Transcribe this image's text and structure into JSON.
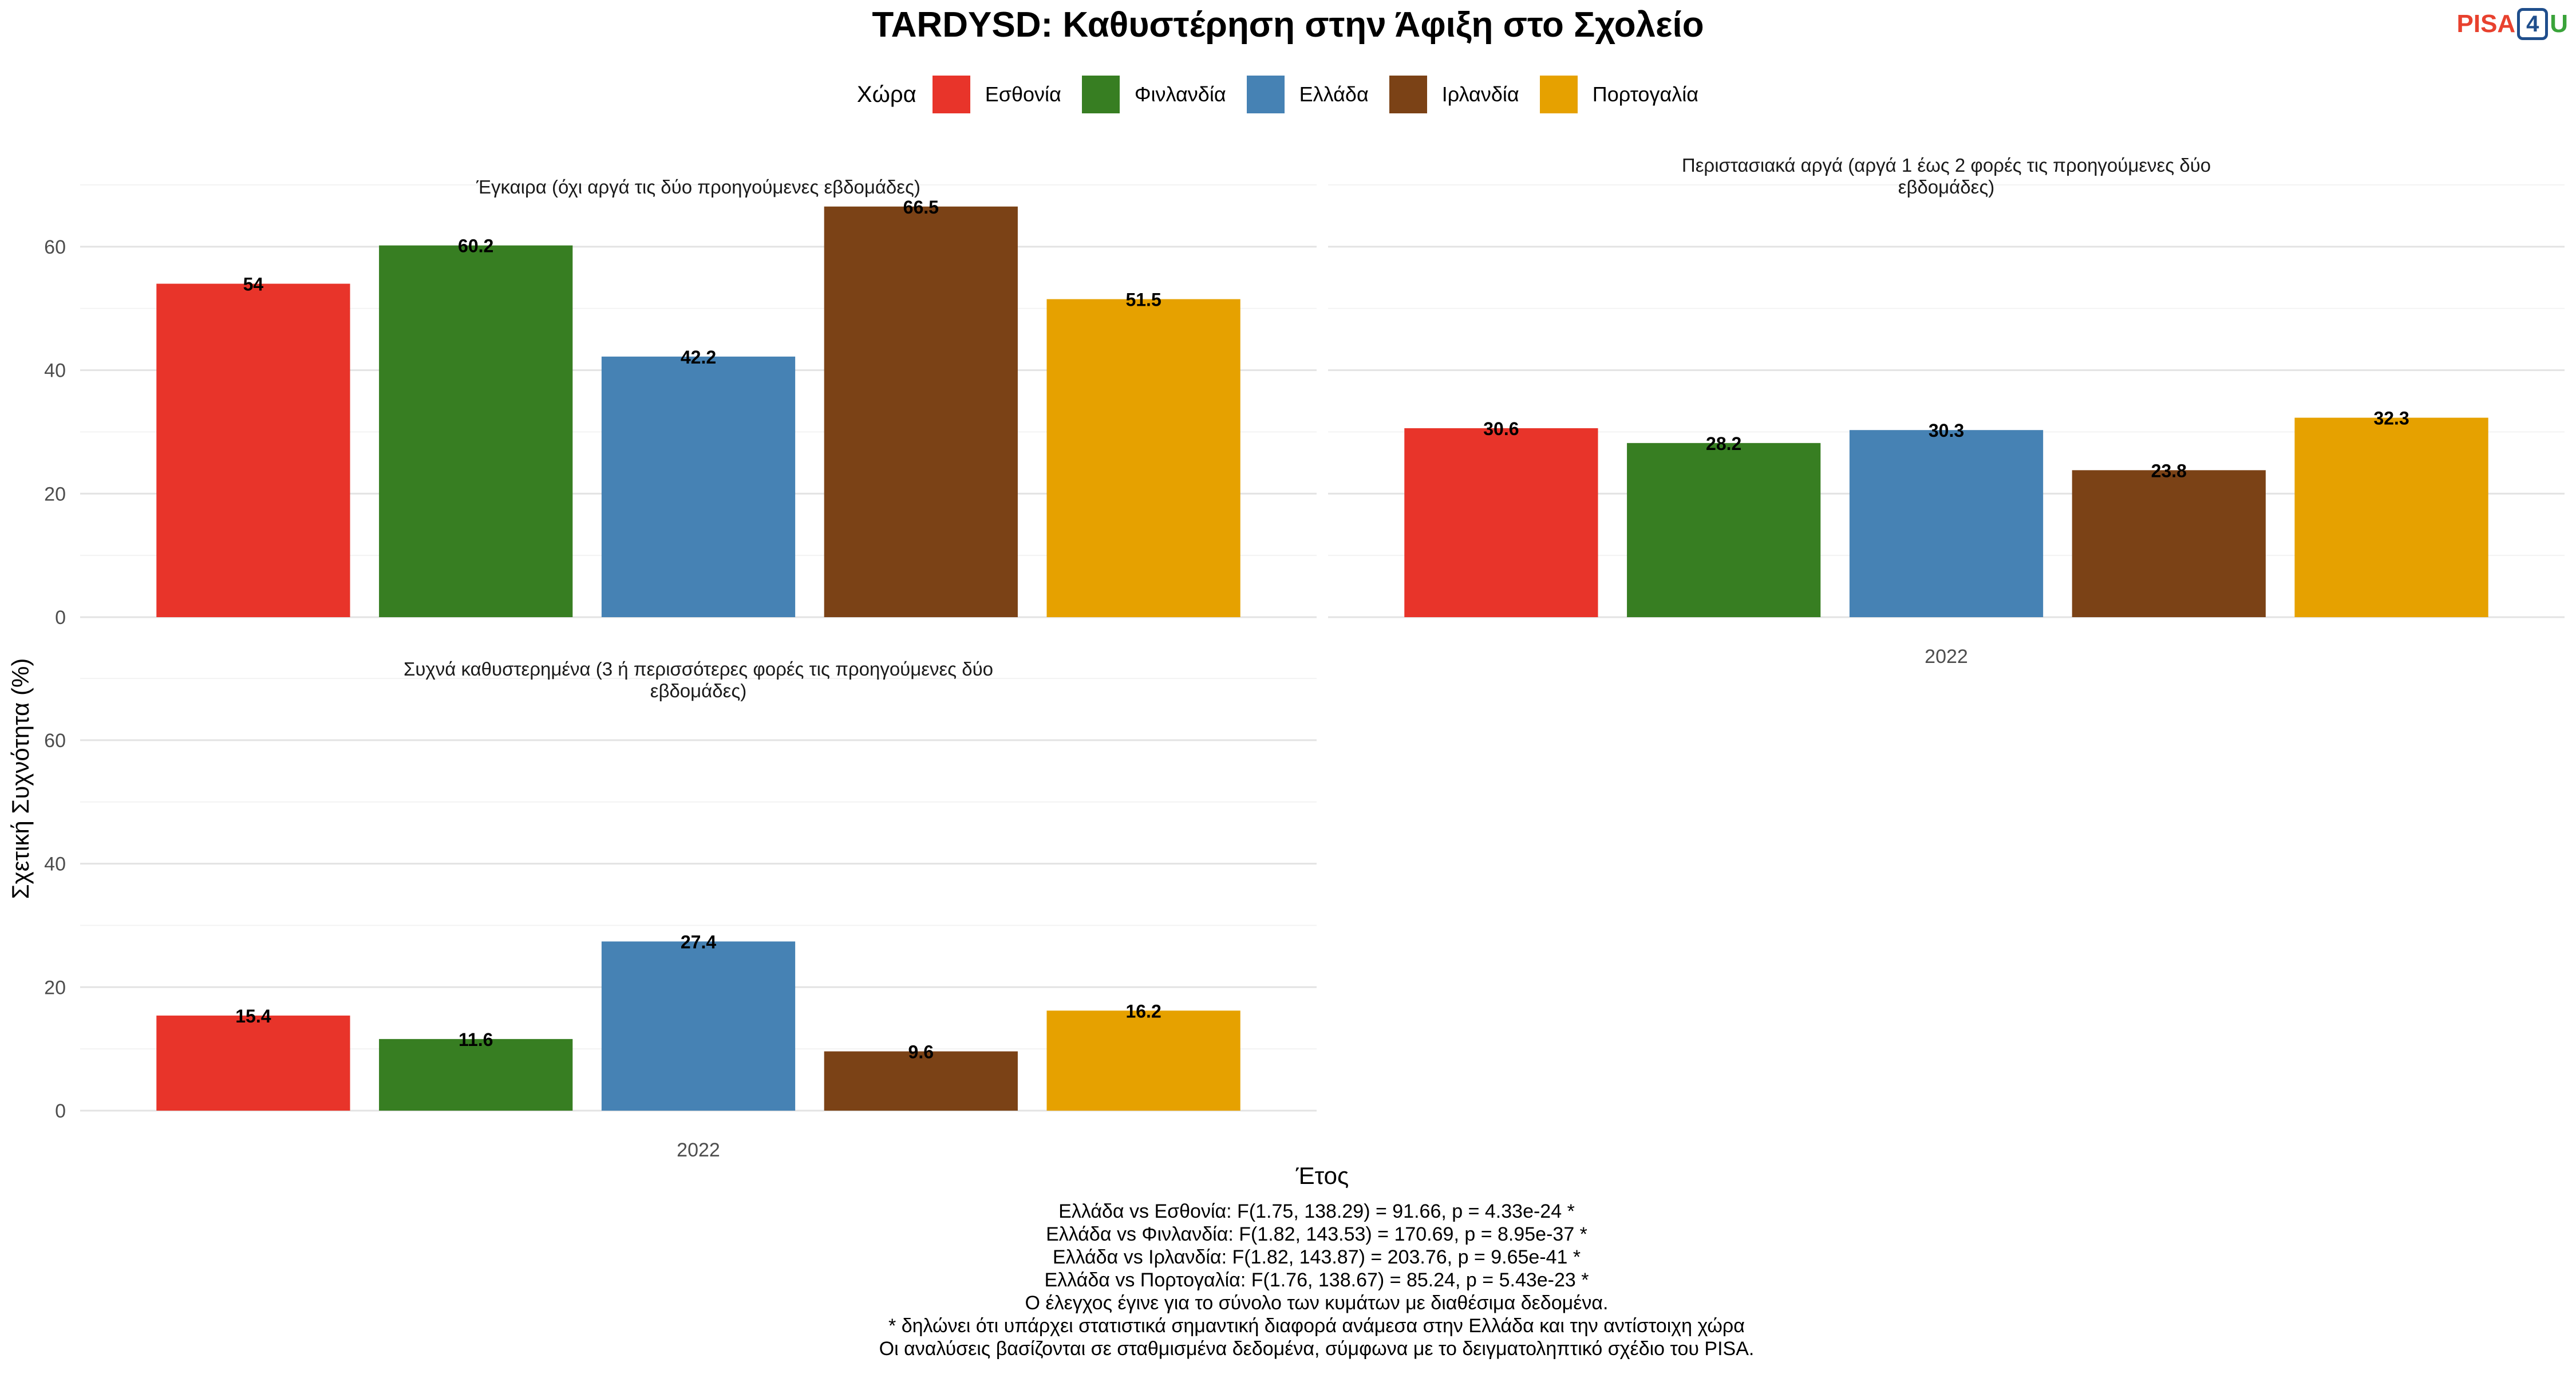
{
  "title": "TARDYSD: Καθυστέρηση στην Άφιξη στο Σχολείο",
  "logo": {
    "part1": "PISA",
    "part2": "4",
    "part3": "U"
  },
  "colors": {
    "Εσθονία": "#e8342a",
    "Φινλανδία": "#377e22",
    "Ελλάδα": "#4682b4",
    "Ιρλανδία": "#7b4216",
    "Πορτογαλία": "#e6a100"
  },
  "legend": {
    "title": "Χώρα",
    "items": [
      "Εσθονία",
      "Φινλανδία",
      "Ελλάδα",
      "Ιρλανδία",
      "Πορτογαλία"
    ]
  },
  "chart_data": {
    "type": "bar",
    "xlabel": "Έτος",
    "ylabel": "Σχετική Συχνότητα (%)",
    "ylim": [
      0,
      70
    ],
    "yticks": [
      0,
      20,
      40,
      60
    ],
    "grid": true,
    "legend_position": "top",
    "categories": [
      "2022"
    ],
    "panels": [
      {
        "title": [
          "Έγκαιρα (όχι αργά τις δύο προηγούμενες εβδομάδες)"
        ],
        "series": [
          {
            "name": "Εσθονία",
            "values": [
              54
            ]
          },
          {
            "name": "Φινλανδία",
            "values": [
              60.2
            ]
          },
          {
            "name": "Ελλάδα",
            "values": [
              42.2
            ]
          },
          {
            "name": "Ιρλανδία",
            "values": [
              66.5
            ]
          },
          {
            "name": "Πορτογαλία",
            "values": [
              51.5
            ]
          }
        ]
      },
      {
        "title": [
          "Περιστασιακά αργά (αργά 1 έως 2 φορές τις προηγούμενες δύο",
          "εβδομάδες)"
        ],
        "series": [
          {
            "name": "Εσθονία",
            "values": [
              30.6
            ]
          },
          {
            "name": "Φινλανδία",
            "values": [
              28.2
            ]
          },
          {
            "name": "Ελλάδα",
            "values": [
              30.3
            ]
          },
          {
            "name": "Ιρλανδία",
            "values": [
              23.8
            ]
          },
          {
            "name": "Πορτογαλία",
            "values": [
              32.3
            ]
          }
        ]
      },
      {
        "title": [
          "Συχνά καθυστερημένα (3 ή περισσότερες φορές τις προηγούμενες δύο",
          "εβδομάδες)"
        ],
        "series": [
          {
            "name": "Εσθονία",
            "values": [
              15.4
            ]
          },
          {
            "name": "Φινλανδία",
            "values": [
              11.6
            ]
          },
          {
            "name": "Ελλάδα",
            "values": [
              27.4
            ]
          },
          {
            "name": "Ιρλανδία",
            "values": [
              9.6
            ]
          },
          {
            "name": "Πορτογαλία",
            "values": [
              16.2
            ]
          }
        ]
      }
    ]
  },
  "notes": [
    "Ελλάδα vs Εσθονία: F(1.75, 138.29) = 91.66, p = 4.33e-24 *",
    "Ελλάδα vs Φινλανδία: F(1.82, 143.53) = 170.69, p = 8.95e-37 *",
    "Ελλάδα vs Ιρλανδία: F(1.82, 143.87) = 203.76, p = 9.65e-41 *",
    "Ελλάδα vs Πορτογαλία: F(1.76, 138.67) = 85.24, p = 5.43e-23 *",
    "Ο έλεγχος έγινε για το σύνολο των κυμάτων με διαθέσιμα δεδομένα.",
    "* δηλώνει ότι υπάρχει στατιστικά σημαντική διαφορά ανάμεσα στην Ελλάδα και την αντίστοιχη χώρα",
    "Οι αναλύσεις βασίζονται σε σταθμισμένα δεδομένα, σύμφωνα με το δειγματοληπτικό σχέδιο του PISA."
  ]
}
